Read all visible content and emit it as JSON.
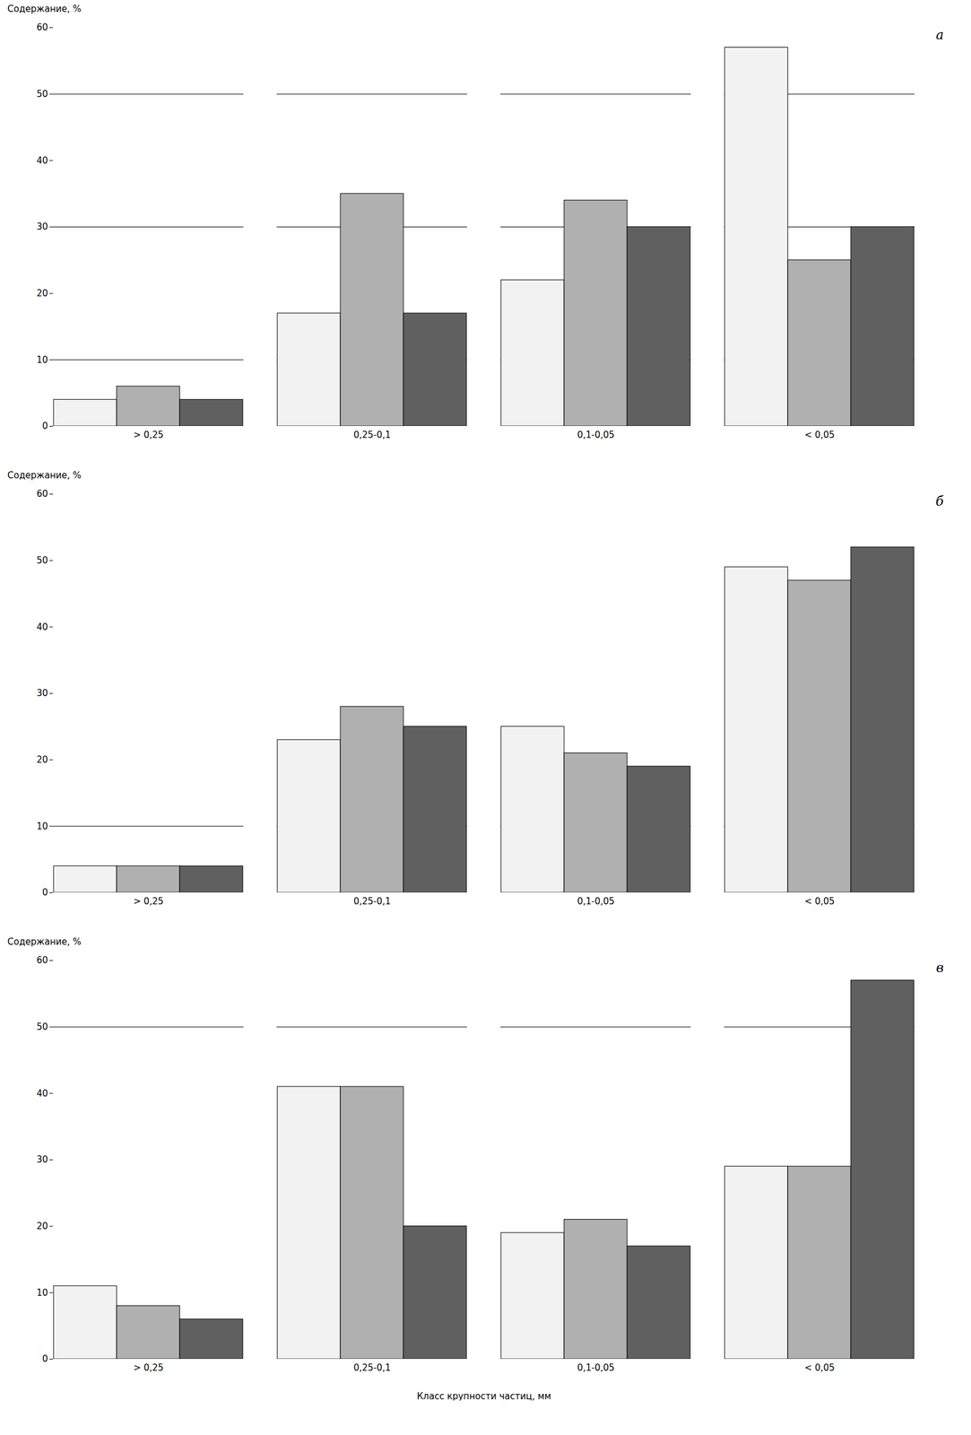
{
  "chart_data": [
    {
      "type": "bar",
      "title": "а",
      "categories": [
        "> 0,25",
        "0,25-0,1",
        "0,1-0,05",
        "< 0,05"
      ],
      "series": [
        {
          "color": "#f2f2f2",
          "values": [
            4,
            17,
            22,
            57
          ]
        },
        {
          "color": "#b0b0b0",
          "values": [
            6,
            35,
            34,
            25
          ]
        },
        {
          "color": "#606060",
          "values": [
            4,
            17,
            30,
            30
          ]
        }
      ],
      "hlines": [
        10,
        30,
        50
      ],
      "ylabel": "Содержание, %",
      "ylim": [
        0,
        60
      ],
      "yticks": [
        0,
        10,
        20,
        30,
        40,
        50,
        60
      ],
      "grid": false
    },
    {
      "type": "bar",
      "title": "б",
      "categories": [
        "> 0,25",
        "0,25-0,1",
        "0,1-0,05",
        "< 0,05"
      ],
      "series": [
        {
          "color": "#f2f2f2",
          "values": [
            4,
            23,
            25,
            49
          ]
        },
        {
          "color": "#b0b0b0",
          "values": [
            4,
            28,
            21,
            47
          ]
        },
        {
          "color": "#606060",
          "values": [
            4,
            25,
            19,
            52
          ]
        }
      ],
      "hlines": [
        10
      ],
      "ylabel": "Содержание, %",
      "ylim": [
        0,
        60
      ],
      "yticks": [
        0,
        10,
        20,
        30,
        40,
        50,
        60
      ],
      "grid": false
    },
    {
      "type": "bar",
      "title": "в",
      "categories": [
        "> 0,25",
        "0,25-0,1",
        "0,1-0,05",
        "< 0,05"
      ],
      "series": [
        {
          "color": "#f2f2f2",
          "values": [
            11,
            41,
            19,
            29
          ]
        },
        {
          "color": "#b0b0b0",
          "values": [
            8,
            41,
            21,
            29
          ]
        },
        {
          "color": "#606060",
          "values": [
            6,
            20,
            17,
            57
          ]
        }
      ],
      "hlines": [
        50
      ],
      "ylabel": "Содержание, %",
      "xlabel": "Класс крупности частиц, мм",
      "ylim": [
        0,
        60
      ],
      "yticks": [
        0,
        10,
        20,
        30,
        40,
        50,
        60
      ],
      "grid": false
    }
  ]
}
